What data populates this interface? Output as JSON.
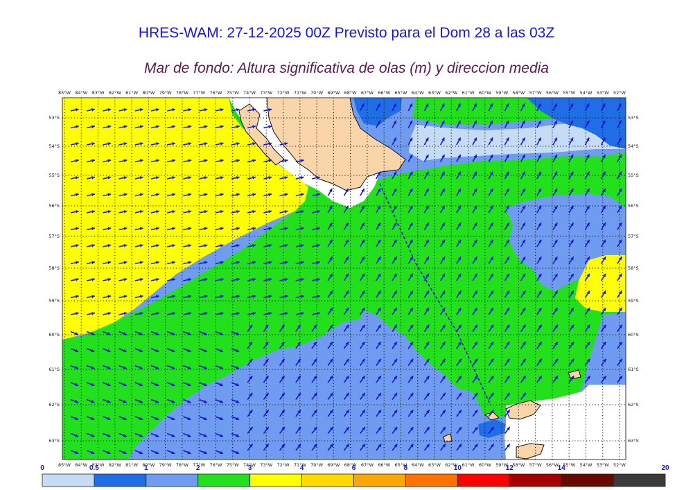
{
  "title": "HRES-WAM: 27-12-2025 00Z Previsto para el Dom 28 a las 03Z",
  "subtitle": "Mar de fondo: Altura significativa de olas (m) y direccion media",
  "lon_labels": [
    "85°W",
    "84°W",
    "83°W",
    "82°W",
    "81°W",
    "80°W",
    "79°W",
    "78°W",
    "77°W",
    "76°W",
    "75°W",
    "74°W",
    "73°W",
    "72°W",
    "71°W",
    "70°W",
    "69°W",
    "68°W",
    "67°W",
    "66°W",
    "65°W",
    "64°W",
    "63°W",
    "62°W",
    "61°W",
    "60°W",
    "59°W",
    "58°W",
    "57°W",
    "56°W",
    "55°W",
    "54°W",
    "53°W",
    "52°W"
  ],
  "lat_labels": [
    "53°S",
    "54°S",
    "55°S",
    "56°S",
    "57°S",
    "58°S",
    "59°S",
    "60°S",
    "61°S",
    "62°S",
    "63°S"
  ],
  "colorbar": {
    "labels": [
      "0",
      "0.5",
      "1",
      "2",
      "3",
      "4",
      "6",
      "8",
      "10",
      "12",
      "14",
      "20"
    ],
    "colors": [
      "#c6dcf5",
      "#1f6ee6",
      "#6f9cf0",
      "#22e01c",
      "#ffff00",
      "#ffd800",
      "#ffa600",
      "#ff7100",
      "#ff0000",
      "#a30000",
      "#660a00",
      "#3a3a3a"
    ]
  },
  "legend_colors": {
    "swell_05_1": "#1f6ee6",
    "swell_1_2": "#6f9cf0",
    "swell_2_3": "#22e01c",
    "swell_3_4": "#ffff00",
    "land": "#fad5aa",
    "arrow": "#1515d8"
  }
}
